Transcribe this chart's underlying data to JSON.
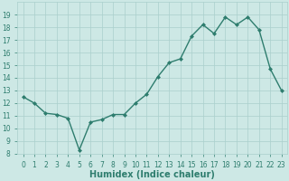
{
  "xlabel": "Humidex (Indice chaleur)",
  "x": [
    0,
    1,
    2,
    3,
    4,
    5,
    6,
    7,
    8,
    9,
    10,
    11,
    12,
    13,
    14,
    15,
    16,
    17,
    18,
    19,
    20,
    21,
    22,
    23
  ],
  "y": [
    12.5,
    12.0,
    11.2,
    11.1,
    10.8,
    8.3,
    10.5,
    10.7,
    11.1,
    11.1,
    12.0,
    12.7,
    14.1,
    15.2,
    15.5,
    17.3,
    18.2,
    17.5,
    18.8,
    18.2,
    18.8,
    17.8,
    14.7,
    13.0
  ],
  "line_color": "#2e7d6e",
  "marker": "D",
  "marker_size": 2,
  "bg_color": "#cde8e5",
  "grid_color": "#aacfcc",
  "ylim": [
    8,
    20
  ],
  "xlim": [
    -0.5,
    23.5
  ],
  "yticks": [
    8,
    9,
    10,
    11,
    12,
    13,
    14,
    15,
    16,
    17,
    18,
    19
  ],
  "xtick_labels": [
    "0",
    "1",
    "2",
    "3",
    "4",
    "5",
    "6",
    "7",
    "8",
    "9",
    "10",
    "11",
    "12",
    "13",
    "14",
    "15",
    "16",
    "17",
    "18",
    "19",
    "20",
    "21",
    "22",
    "23"
  ],
  "tick_fontsize": 5.5,
  "xlabel_fontsize": 7,
  "line_width": 1.0
}
